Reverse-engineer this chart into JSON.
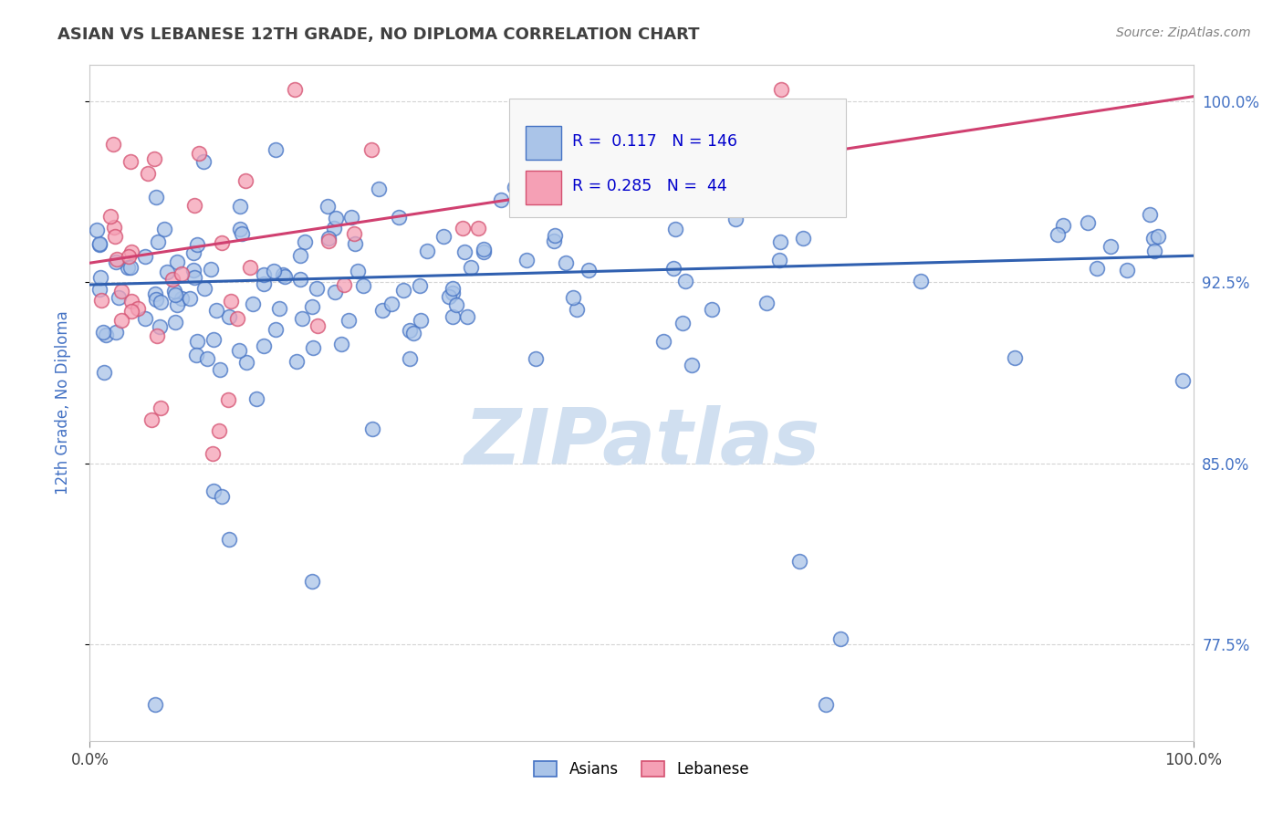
{
  "title": "ASIAN VS LEBANESE 12TH GRADE, NO DIPLOMA CORRELATION CHART",
  "source_text": "Source: ZipAtlas.com",
  "ylabel": "12th Grade, No Diploma",
  "xlim": [
    0.0,
    1.0
  ],
  "ylim": [
    0.735,
    1.015
  ],
  "yticks": [
    0.775,
    0.85,
    0.925,
    1.0
  ],
  "ytick_labels": [
    "77.5%",
    "85.0%",
    "92.5%",
    "100.0%"
  ],
  "xticks": [
    0.0,
    1.0
  ],
  "xtick_labels": [
    "0.0%",
    "100.0%"
  ],
  "R_asian": 0.117,
  "N_asian": 146,
  "R_lebanese": 0.285,
  "N_lebanese": 44,
  "asian_color": "#aac4e8",
  "lebanese_color": "#f5a0b5",
  "asian_edge_color": "#4472c4",
  "lebanese_edge_color": "#d45070",
  "asian_line_color": "#3060b0",
  "lebanese_line_color": "#d04070",
  "watermark": "ZIPatlas",
  "watermark_color": "#d0dff0",
  "background_color": "#ffffff",
  "grid_color": "#d0d0d0",
  "legend_text_color": "#0000cc",
  "title_color": "#404040",
  "ylabel_color": "#4472c4",
  "source_color": "#808080",
  "asian_line_y0": 0.924,
  "asian_line_y1": 0.936,
  "lebanese_line_y0": 0.933,
  "lebanese_line_y1": 1.002
}
